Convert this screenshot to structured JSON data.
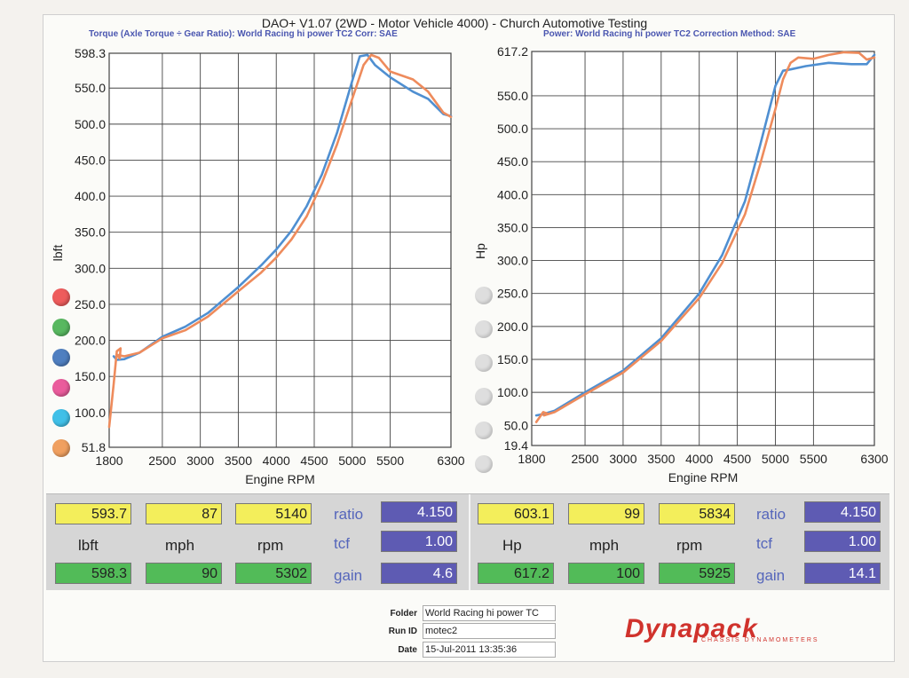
{
  "header": {
    "title": "DAO+ V1.07 (2WD - Motor Vehicle 4000) - Church Automotive Testing",
    "left_sub": "Torque (Axle Torque ÷ Gear Ratio): World Racing hi power TC2     Corr: SAE",
    "right_sub": "Power: World Racing hi power TC2      Correction Method: SAE"
  },
  "colors": {
    "blue_run": "#4f8fd1",
    "orange_run": "#ee8b5c",
    "grid": "#444444"
  },
  "legend_dots_left": [
    "#ee5c5c",
    "#58b860",
    "#4f7fc0",
    "#ea5c9c",
    "#40c0e8",
    "#f0a060"
  ],
  "chart_data": [
    {
      "type": "line",
      "xlabel": "Engine RPM",
      "ylabel": "lbft",
      "xlim": [
        1800,
        6300
      ],
      "ylim": [
        51.8,
        598.3
      ],
      "x_ticks": [
        "1800",
        "2500",
        "3000",
        "3500",
        "4000",
        "4500",
        "5000",
        "5500",
        "6300"
      ],
      "x_tick_values": [
        1800,
        2500,
        3000,
        3500,
        4000,
        4500,
        5000,
        5500,
        6300
      ],
      "y_ticks": [
        "598.3",
        "550.0",
        "500.0",
        "450.0",
        "400.0",
        "350.0",
        "300.0",
        "250.0",
        "200.0",
        "150.0",
        "100.0",
        "51.8"
      ],
      "y_tick_values": [
        598.3,
        550,
        500,
        450,
        400,
        350,
        300,
        250,
        200,
        150,
        100,
        51.8
      ],
      "series": [
        {
          "color": "#4f8fd1",
          "x": [
            1860,
            1900,
            2000,
            2200,
            2500,
            2800,
            3100,
            3500,
            3800,
            4000,
            4200,
            4400,
            4600,
            4800,
            5000,
            5100,
            5200,
            5300,
            5500,
            5800,
            6000,
            6200,
            6300
          ],
          "y": [
            178,
            173,
            174,
            183,
            205,
            219,
            238,
            274,
            304,
            326,
            352,
            386,
            430,
            488,
            560,
            594,
            596,
            582,
            565,
            545,
            535,
            514,
            511
          ]
        },
        {
          "color": "#ee8b5c",
          "x": [
            1800,
            1860,
            1900,
            1950,
            1940,
            1900,
            2000,
            2200,
            2500,
            2800,
            3100,
            3500,
            3800,
            4000,
            4200,
            4400,
            4600,
            4800,
            5000,
            5150,
            5250,
            5350,
            5500,
            5800,
            6000,
            6200,
            6300
          ],
          "y": [
            80,
            140,
            185,
            189,
            175,
            180,
            178,
            183,
            203,
            214,
            233,
            268,
            294,
            315,
            340,
            372,
            418,
            472,
            535,
            582,
            596,
            592,
            573,
            562,
            545,
            516,
            510
          ]
        }
      ]
    },
    {
      "type": "line",
      "xlabel": "Engine RPM",
      "ylabel": "Hp",
      "xlim": [
        1800,
        6300
      ],
      "ylim": [
        19.4,
        617.2
      ],
      "x_ticks": [
        "1800",
        "2500",
        "3000",
        "3500",
        "4000",
        "4500",
        "5000",
        "5500",
        "6300"
      ],
      "x_tick_values": [
        1800,
        2500,
        3000,
        3500,
        4000,
        4500,
        5000,
        5500,
        6300
      ],
      "y_ticks": [
        "617.2",
        "550.0",
        "500.0",
        "450.0",
        "400.0",
        "350.0",
        "300.0",
        "250.0",
        "200.0",
        "150.0",
        "100.0",
        "50.0",
        "19.4"
      ],
      "y_tick_values": [
        617.2,
        550,
        500,
        450,
        400,
        350,
        300,
        250,
        200,
        150,
        100,
        50,
        19.4
      ],
      "series": [
        {
          "color": "#4f8fd1",
          "x": [
            1860,
            1950,
            2100,
            2500,
            3000,
            3500,
            4000,
            4300,
            4600,
            4800,
            5000,
            5100,
            5200,
            5400,
            5700,
            6000,
            6200,
            6300
          ],
          "y": [
            65,
            67,
            72,
            100,
            133,
            182,
            250,
            308,
            390,
            475,
            565,
            588,
            590,
            595,
            600,
            598,
            598,
            612
          ]
        },
        {
          "color": "#ee8b5c",
          "x": [
            1860,
            1950,
            2000,
            1960,
            2100,
            2500,
            3000,
            3500,
            4000,
            4300,
            4600,
            4800,
            5000,
            5100,
            5200,
            5300,
            5500,
            5700,
            5900,
            6100,
            6200,
            6300
          ],
          "y": [
            55,
            70,
            68,
            65,
            70,
            97,
            130,
            178,
            243,
            296,
            370,
            446,
            530,
            575,
            600,
            608,
            606,
            612,
            616,
            615,
            605,
            608
          ]
        }
      ]
    }
  ],
  "panel": {
    "left": {
      "top_values": [
        "593.7",
        "87",
        "5140"
      ],
      "units": [
        "lbft",
        "mph",
        "rpm"
      ],
      "bottom_values": [
        "598.3",
        "90",
        "5302"
      ],
      "param_labels": [
        "ratio",
        "tcf",
        "gain"
      ],
      "param_values": [
        "4.150",
        "1.00",
        "4.6"
      ]
    },
    "right": {
      "top_values": [
        "603.1",
        "99",
        "5834"
      ],
      "units": [
        "Hp",
        "mph",
        "rpm"
      ],
      "bottom_values": [
        "617.2",
        "100",
        "5925"
      ],
      "param_labels": [
        "ratio",
        "tcf",
        "gain"
      ],
      "param_values": [
        "4.150",
        "1.00",
        "14.1"
      ]
    }
  },
  "footer": {
    "folder_label": "Folder",
    "folder_value": "World Racing hi power TC",
    "runid_label": "Run ID",
    "runid_value": "motec2",
    "date_label": "Date",
    "date_value": "15-Jul-2011 13:35:36",
    "logo_text": "Dynapack",
    "logo_sub": "CHASSIS DYNAMOMETERS"
  }
}
